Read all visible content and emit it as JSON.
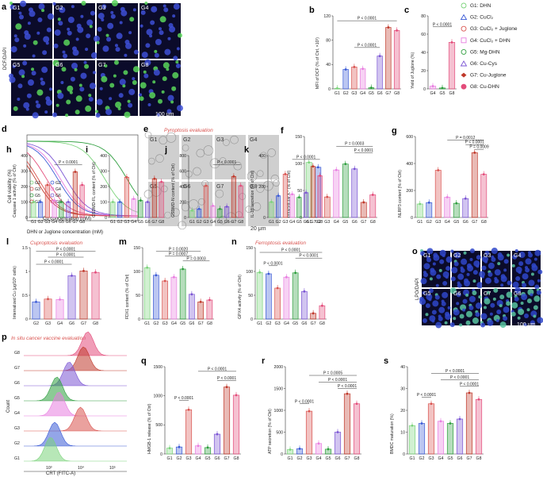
{
  "colors": {
    "G1": "#7bd37b",
    "G2": "#3b5bd6",
    "G3": "#d9534f",
    "G4": "#e87ee0",
    "G5": "#2e9e3e",
    "G6": "#7b55d4",
    "G7": "#c0392b",
    "G8": "#e34d7b",
    "title": "#d9534f",
    "fluoro_bg": "#0b0b2a"
  },
  "legend": {
    "items": [
      {
        "key": "G1",
        "label": "G1: DHN",
        "marker": "circle"
      },
      {
        "key": "G2",
        "label": "G2: CuCl₂",
        "marker": "triangle"
      },
      {
        "key": "G3",
        "label": "G3: CuCl₂ + Juglone",
        "marker": "circle"
      },
      {
        "key": "G4",
        "label": "G4: CuCl₂ + DHN",
        "marker": "square"
      },
      {
        "key": "G5",
        "label": "G5: Mg-DHN",
        "marker": "circle"
      },
      {
        "key": "G6",
        "label": "G6: Cu-Cys",
        "marker": "triangle"
      },
      {
        "key": "G7",
        "label": "G7: Cu-Juglone",
        "marker": "diamond"
      },
      {
        "key": "G8",
        "label": "G8: Cu-DHN",
        "marker": "circle"
      }
    ]
  },
  "panel_a": {
    "letter": "a",
    "stain": "DCF/DAPI",
    "scale": "100 μm",
    "tiles": [
      "G1",
      "G2",
      "G3",
      "G4",
      "G5",
      "G6",
      "G7",
      "G8"
    ]
  },
  "panel_d": {
    "letter": "d",
    "xlabel_top": "Cu concentration (mM)",
    "xlabel_bottom": "DHN or Juglone concentration (mM)",
    "ylabel": "Cell viability (%)",
    "legend": [
      "G1",
      "G3",
      "G5",
      "G7",
      "G2",
      "G4",
      "G6",
      "G8"
    ]
  },
  "panel_e": {
    "letter": "e",
    "title": "Pyroptosis evaluation",
    "scale": "20 μm",
    "tiles": [
      "G1",
      "G2",
      "G3",
      "G4",
      "G5",
      "G6",
      "G7",
      "G8"
    ]
  },
  "panel_o": {
    "letter": "o",
    "stain": "LPO/DAPI",
    "scale": "100 μm",
    "tiles": [
      "G1",
      "G2",
      "G3",
      "G4",
      "G5",
      "G6",
      "G7",
      "G8"
    ]
  },
  "panel_p": {
    "letter": "p",
    "title": "In situ cancer vaccine evaluation",
    "xlabel": "CRT (FITC-A)",
    "ylabel": "Count",
    "groups": [
      "G8",
      "G7",
      "G6",
      "G5",
      "G4",
      "G3",
      "G2",
      "G1"
    ],
    "xticks": [
      "10³",
      "10⁴",
      "10⁵"
    ]
  },
  "chart_data": [
    {
      "id": "b",
      "type": "bar",
      "ylabel": "MFI of DCF (% of Ctrl, ×10²)",
      "ylim": [
        0,
        120
      ],
      "yticks": [
        0,
        40,
        80,
        120
      ],
      "categories": [
        "G1",
        "G2",
        "G3",
        "G4",
        "G5",
        "G6",
        "G7",
        "G8"
      ],
      "values": [
        1,
        32,
        36,
        33,
        2,
        54,
        101,
        96
      ],
      "sig": [
        {
          "from": "G1",
          "to": "G8",
          "text": "P < 0.0001",
          "y": 112
        },
        {
          "from": "G3",
          "to": "G6",
          "text": "P < 0.0001",
          "y": 68
        }
      ]
    },
    {
      "id": "c",
      "type": "bar",
      "ylabel": "Yield of Juglone (%)",
      "ylim": [
        0,
        80
      ],
      "yticks": [
        0,
        20,
        40,
        60,
        80
      ],
      "categories": [
        "G4",
        "G5",
        "G8"
      ],
      "values": [
        3,
        1,
        51
      ],
      "sig": [
        {
          "from": "G4",
          "to": "G8",
          "text": "P < 0.0001",
          "y": 68
        }
      ]
    },
    {
      "id": "f",
      "type": "bar",
      "ylabel": "Intracellular K⁺ (% of Ctrl)",
      "ylim": [
        0,
        150
      ],
      "yticks": [
        0,
        50,
        100,
        150
      ],
      "categories": [
        "G1",
        "G2",
        "G3",
        "G4",
        "G5",
        "G6",
        "G7",
        "G8"
      ],
      "values": [
        102,
        93,
        38,
        88,
        99,
        90,
        28,
        42
      ],
      "sig": [
        {
          "from": "G4",
          "to": "G8",
          "text": "P = 0.0003",
          "y": 132
        },
        {
          "from": "G6",
          "to": "G8",
          "text": "P < 0.0001",
          "y": 120
        }
      ]
    },
    {
      "id": "g",
      "type": "bar",
      "ylabel": "NLRP3 content (% of Ctrl)",
      "ylim": [
        0,
        600
      ],
      "yticks": [
        0,
        200,
        400,
        600
      ],
      "categories": [
        "G1",
        "G2",
        "G3",
        "G4",
        "G5",
        "G6",
        "G7",
        "G8"
      ],
      "values": [
        100,
        110,
        350,
        150,
        105,
        140,
        480,
        320
      ],
      "sig": [
        {
          "from": "G4",
          "to": "G8",
          "text": "P = 0.0012",
          "y": 575
        },
        {
          "from": "G6",
          "to": "G8",
          "text": "P < 0.0001",
          "y": 540
        },
        {
          "from": "G7",
          "to": "G8",
          "text": "P = 0.0009",
          "y": 505
        }
      ]
    },
    {
      "id": "h",
      "type": "bar",
      "ylabel": "Caspase 1 activity (% of Ctrl)",
      "ylim": [
        0,
        400
      ],
      "yticks": [
        0,
        100,
        200,
        300,
        400
      ],
      "categories": [
        "G1",
        "G2",
        "G3",
        "G4",
        "G5",
        "G6",
        "G7",
        "G8"
      ],
      "values": [
        100,
        100,
        210,
        110,
        100,
        100,
        295,
        210
      ],
      "sig": [
        {
          "from": "G4",
          "to": "G8",
          "text": "P < 0.0001",
          "y": 340
        }
      ]
    },
    {
      "id": "i",
      "type": "bar",
      "ylabel": "GSDMD-FL content (% of Ctrl)",
      "ylim": [
        0,
        400
      ],
      "yticks": [
        0,
        100,
        200,
        300,
        400
      ],
      "categories": [
        "G1",
        "G2",
        "G3",
        "G4",
        "G5",
        "G6",
        "G7",
        "G8"
      ],
      "values": [
        100,
        100,
        260,
        120,
        110,
        100,
        250,
        230
      ],
      "sig": []
    },
    {
      "id": "j",
      "type": "bar",
      "ylabel": "GSDMD-N content (% of Ctrl)",
      "ylim": [
        0,
        800
      ],
      "yticks": [
        0,
        200,
        400,
        600,
        800
      ],
      "categories": [
        "G1",
        "G2",
        "G3",
        "G4",
        "G5",
        "G6",
        "G7",
        "G8"
      ],
      "values": [
        90,
        110,
        410,
        150,
        110,
        140,
        530,
        410
      ],
      "sig": [
        {
          "from": "G4",
          "to": "G8",
          "text": "P < 0.0001",
          "y": 680
        }
      ]
    },
    {
      "id": "k",
      "type": "bar",
      "ylabel": "IL-1β secretion (% of Ctrl)",
      "ylim": [
        0,
        400
      ],
      "yticks": [
        0,
        200,
        400
      ],
      "categories": [
        "G1",
        "G2",
        "G3",
        "G4",
        "G5",
        "G6",
        "G7",
        "G8"
      ],
      "values": [
        100,
        140,
        280,
        150,
        130,
        160,
        330,
        270
      ],
      "sig": [
        {
          "from": "G4",
          "to": "G8",
          "text": "P < 0.0001",
          "y": 375
        }
      ]
    },
    {
      "id": "l",
      "type": "bar",
      "title": "Cuproptosis evaluation",
      "ylabel": "Internalized Cu (μg/10⁶ cells)",
      "ylim": [
        0,
        1.5
      ],
      "yticks": [
        0,
        0.5,
        1.0,
        1.5
      ],
      "categories": [
        "G2",
        "G3",
        "G4",
        "G6",
        "G7",
        "G8"
      ],
      "values": [
        0.36,
        0.42,
        0.41,
        0.91,
        1.01,
        0.98
      ],
      "sig": [
        {
          "from": "G2",
          "to": "G8",
          "text": "P < 0.0001",
          "y": 1.42
        },
        {
          "from": "G3",
          "to": "G7",
          "text": "P < 0.0001",
          "y": 1.3
        },
        {
          "from": "G2",
          "to": "G6",
          "text": "P < 0.0001",
          "y": 1.15
        }
      ]
    },
    {
      "id": "m",
      "type": "bar",
      "ylabel": "FDX1 content (% of Ctrl)",
      "ylim": [
        0,
        150
      ],
      "yticks": [
        0,
        50,
        100,
        150
      ],
      "categories": [
        "G1",
        "G2",
        "G3",
        "G4",
        "G5",
        "G6",
        "G7",
        "G8"
      ],
      "values": [
        108,
        92,
        80,
        88,
        105,
        52,
        36,
        40
      ],
      "sig": [
        {
          "from": "G2",
          "to": "G7",
          "text": "P = 0.0020",
          "y": 142
        },
        {
          "from": "G3",
          "to": "G6",
          "text": "P = 0.0007",
          "y": 132
        },
        {
          "from": "G5",
          "to": "G8",
          "text": "P = 0.0003",
          "y": 122
        }
      ]
    },
    {
      "id": "n",
      "type": "bar",
      "title": "Ferroptosis evaluation",
      "ylabel": "GPX4 activity (% of Ctrl)",
      "ylim": [
        0,
        150
      ],
      "yticks": [
        0,
        50,
        100,
        150
      ],
      "categories": [
        "G1",
        "G2",
        "G3",
        "G4",
        "G5",
        "G6",
        "G7",
        "G8"
      ],
      "values": [
        98,
        95,
        65,
        88,
        97,
        58,
        12,
        28
      ],
      "sig": [
        {
          "from": "G1",
          "to": "G8",
          "text": "P < 0.0001",
          "y": 140
        },
        {
          "from": "G2",
          "to": "G3",
          "text": "P < 0.0001",
          "y": 112
        },
        {
          "from": "G5",
          "to": "G8",
          "text": "P < 0.0001",
          "y": 128
        }
      ]
    },
    {
      "id": "q",
      "type": "bar",
      "ylabel": "HMGB-1 release (% of Ctrl)",
      "ylim": [
        0,
        1500
      ],
      "yticks": [
        0,
        500,
        1000,
        1500
      ],
      "categories": [
        "G1",
        "G2",
        "G3",
        "G4",
        "G5",
        "G6",
        "G7",
        "G8"
      ],
      "values": [
        100,
        120,
        760,
        140,
        110,
        340,
        1150,
        1010
      ],
      "sig": [
        {
          "from": "G2",
          "to": "G3",
          "text": "P < 0.0001",
          "y": 920
        },
        {
          "from": "G6",
          "to": "G8",
          "text": "P < 0.0001",
          "y": 1260
        },
        {
          "from": "G4",
          "to": "G8",
          "text": "P < 0.0001",
          "y": 1420
        }
      ]
    },
    {
      "id": "r",
      "type": "bar",
      "ylabel": "ATP secretion (% of Ctrl)",
      "ylim": [
        0,
        2000
      ],
      "yticks": [
        0,
        500,
        1000,
        1500,
        2000
      ],
      "categories": [
        "G1",
        "G2",
        "G3",
        "G4",
        "G5",
        "G6",
        "G7",
        "G8"
      ],
      "values": [
        100,
        120,
        980,
        240,
        110,
        500,
        1380,
        1150
      ],
      "sig": [
        {
          "from": "G2",
          "to": "G3",
          "text": "P < 0.0001",
          "y": 1150
        },
        {
          "from": "G3",
          "to": "G8",
          "text": "P = 0.0005",
          "y": 1800
        },
        {
          "from": "G4",
          "to": "G8",
          "text": "P < 0.0001",
          "y": 1650
        },
        {
          "from": "G6",
          "to": "G8",
          "text": "P < 0.0001",
          "y": 1500
        }
      ]
    },
    {
      "id": "s",
      "type": "bar",
      "ylabel": "BMDC maturation (%)",
      "ylim": [
        0,
        40
      ],
      "yticks": [
        0,
        10,
        20,
        30,
        40
      ],
      "categories": [
        "G1",
        "G2",
        "G3",
        "G4",
        "G5",
        "G6",
        "G7",
        "G8"
      ],
      "values": [
        13,
        14,
        23,
        15,
        14,
        16,
        28,
        25
      ],
      "sig": [
        {
          "from": "G2",
          "to": "G3",
          "text": "P < 0.0001",
          "y": 26
        },
        {
          "from": "G3",
          "to": "G8",
          "text": "P < 0.0001",
          "y": 37
        },
        {
          "from": "G4",
          "to": "G8",
          "text": "P < 0.0001",
          "y": 34
        },
        {
          "from": "G6",
          "to": "G8",
          "text": "P < 0.0001",
          "y": 31
        }
      ]
    }
  ]
}
